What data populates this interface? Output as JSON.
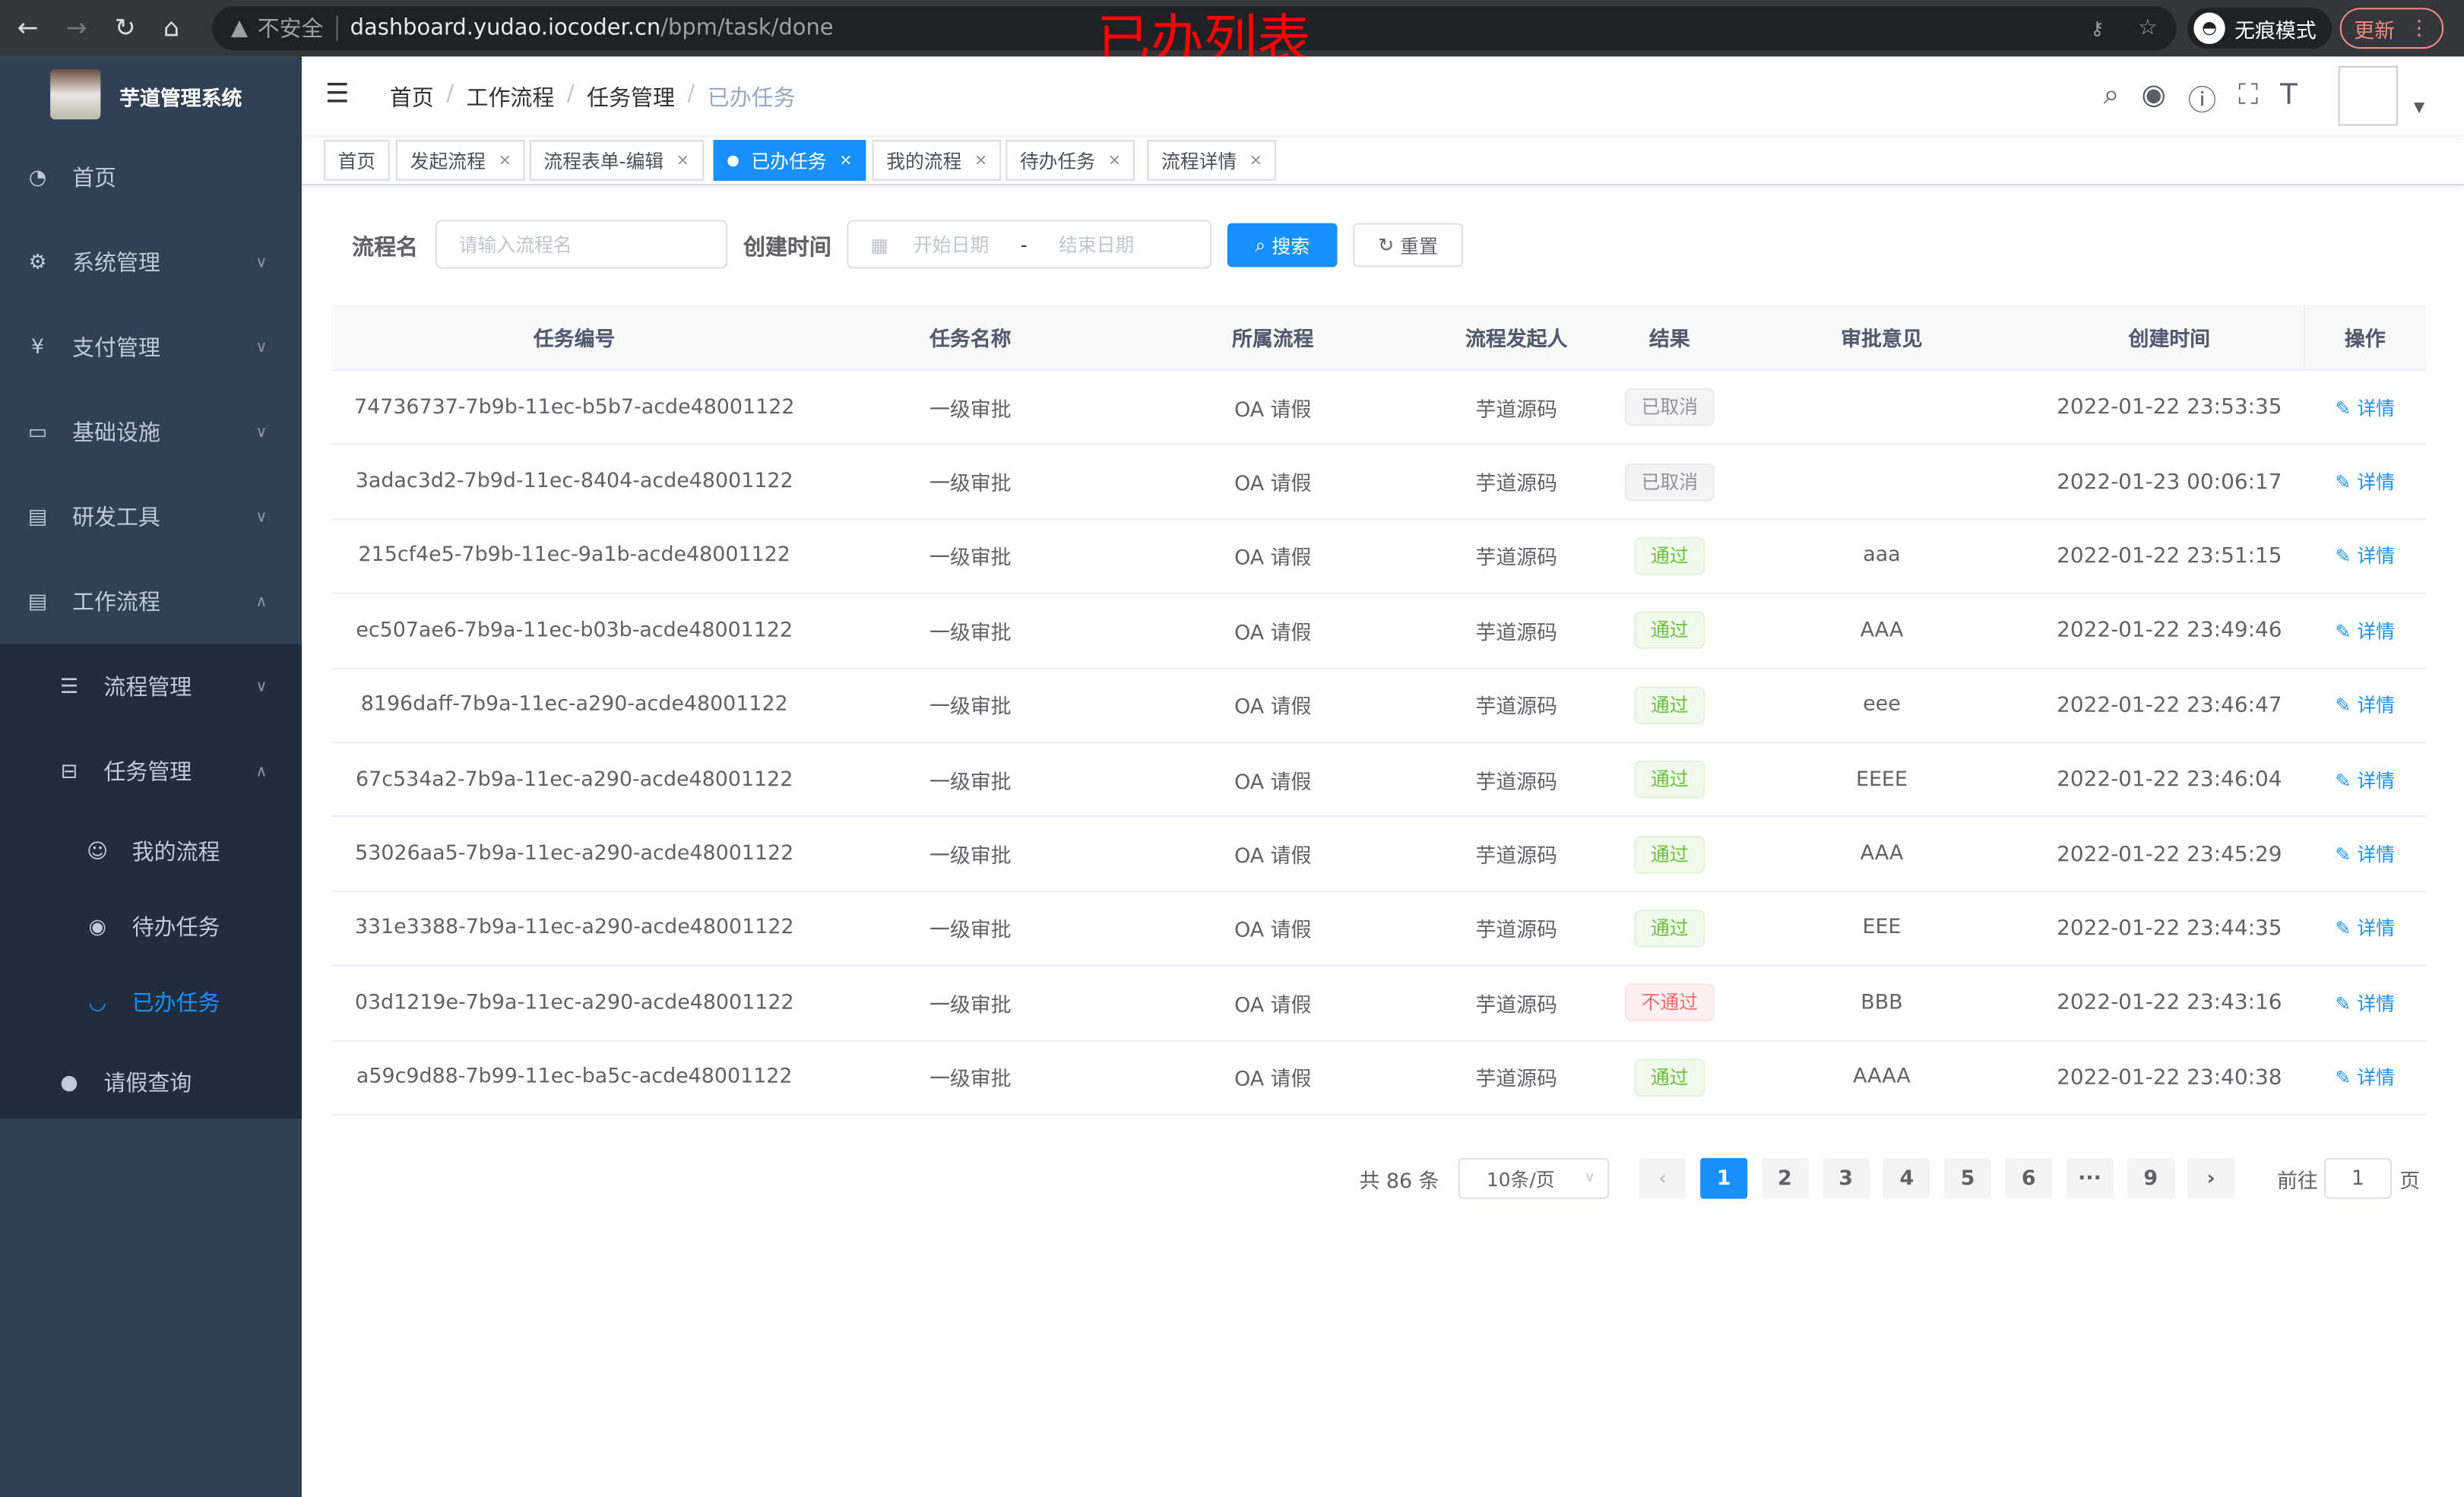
{
  "browser": {
    "insecure": "不安全",
    "url_host": "dashboard.yudao.iocoder.cn",
    "url_path": "/bpm/task/done",
    "incognito": "无痕模式",
    "update": "更新"
  },
  "annotation": "已办列表",
  "app": {
    "title": "芋道管理系统"
  },
  "sidebar": {
    "items": [
      {
        "label": "首页",
        "icon": "dashboard-icon"
      },
      {
        "label": "系统管理",
        "icon": "gear-icon"
      },
      {
        "label": "支付管理",
        "icon": "yen-icon"
      },
      {
        "label": "基础设施",
        "icon": "monitor-icon"
      },
      {
        "label": "研发工具",
        "icon": "toolbox-icon"
      },
      {
        "label": "工作流程",
        "icon": "toolbox-icon"
      },
      {
        "label": "流程管理",
        "icon": "list-icon"
      },
      {
        "label": "任务管理",
        "icon": "tree-icon"
      },
      {
        "label": "我的流程",
        "icon": "people-icon"
      },
      {
        "label": "待办任务",
        "icon": "eye-icon"
      },
      {
        "label": "已办任务",
        "icon": "eye-closed-icon"
      },
      {
        "label": "请假查询",
        "icon": "user-icon"
      }
    ],
    "active": "已办任务",
    "active_color": "#1890ff"
  },
  "breadcrumb": [
    "首页",
    "工作流程",
    "任务管理",
    "已办任务"
  ],
  "tags": [
    {
      "label": "首页"
    },
    {
      "label": "发起流程"
    },
    {
      "label": "流程表单-编辑"
    },
    {
      "label": "已办任务",
      "active": true
    },
    {
      "label": "我的流程"
    },
    {
      "label": "待办任务"
    },
    {
      "label": "流程详情"
    }
  ],
  "search": {
    "name_label": "流程名",
    "name_placeholder": "请输入流程名",
    "time_label": "创建时间",
    "start_placeholder": "开始日期",
    "range_sep": "-",
    "end_placeholder": "结束日期",
    "search_btn": "搜索",
    "reset_btn": "重置"
  },
  "table": {
    "headers": [
      "任务编号",
      "任务名称",
      "所属流程",
      "流程发起人",
      "结果",
      "审批意见",
      "创建时间",
      "操作"
    ],
    "rows": [
      [
        "74736737-7b9b-11ec-b5b7-acde48001122",
        "一级审批",
        "OA 请假",
        "芋道源码",
        "已取消",
        "",
        "2022-01-22 23:53:35",
        "详情"
      ],
      [
        "3adac3d2-7b9d-11ec-8404-acde48001122",
        "一级审批",
        "OA 请假",
        "芋道源码",
        "已取消",
        "",
        "2022-01-23 00:06:17",
        "详情"
      ],
      [
        "215cf4e5-7b9b-11ec-9a1b-acde48001122",
        "一级审批",
        "OA 请假",
        "芋道源码",
        "通过",
        "aaa",
        "2022-01-22 23:51:15",
        "详情"
      ],
      [
        "ec507ae6-7b9a-11ec-b03b-acde48001122",
        "一级审批",
        "OA 请假",
        "芋道源码",
        "通过",
        "AAA",
        "2022-01-22 23:49:46",
        "详情"
      ],
      [
        "8196daff-7b9a-11ec-a290-acde48001122",
        "一级审批",
        "OA 请假",
        "芋道源码",
        "通过",
        "eee",
        "2022-01-22 23:46:47",
        "详情"
      ],
      [
        "67c534a2-7b9a-11ec-a290-acde48001122",
        "一级审批",
        "OA 请假",
        "芋道源码",
        "通过",
        "EEEE",
        "2022-01-22 23:46:04",
        "详情"
      ],
      [
        "53026aa5-7b9a-11ec-a290-acde48001122",
        "一级审批",
        "OA 请假",
        "芋道源码",
        "通过",
        "AAA",
        "2022-01-22 23:45:29",
        "详情"
      ],
      [
        "331e3388-7b9a-11ec-a290-acde48001122",
        "一级审批",
        "OA 请假",
        "芋道源码",
        "通过",
        "EEE",
        "2022-01-22 23:44:35",
        "详情"
      ],
      [
        "03d1219e-7b9a-11ec-a290-acde48001122",
        "一级审批",
        "OA 请假",
        "芋道源码",
        "不通过",
        "BBB",
        "2022-01-22 23:43:16",
        "详情"
      ],
      [
        "a59c9d88-7b99-11ec-ba5c-acde48001122",
        "一级审批",
        "OA 请假",
        "芋道源码",
        "通过",
        "AAAA",
        "2022-01-22 23:40:38",
        "详情"
      ]
    ],
    "result_styles": {
      "已取消": "info",
      "通过": "success",
      "不通过": "danger"
    }
  },
  "pagination": {
    "total": "共 86 条",
    "page_size": "10条/页",
    "pages": [
      "1",
      "2",
      "3",
      "4",
      "5",
      "6",
      "···",
      "9"
    ],
    "current": "1",
    "goto_label": "前往",
    "goto_value": "1",
    "goto_suffix": "页"
  }
}
